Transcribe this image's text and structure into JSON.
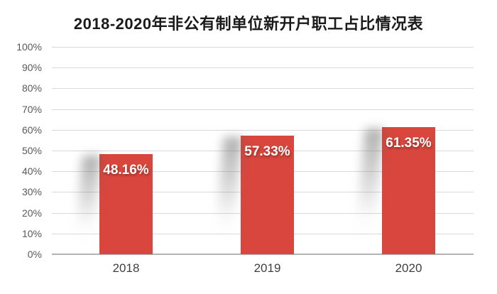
{
  "chart_data": {
    "type": "bar",
    "title": "2018-2020年非公有制单位新开户职工占比情况表",
    "categories": [
      "2018",
      "2019",
      "2020"
    ],
    "values": [
      48.16,
      57.33,
      61.35
    ],
    "data_labels": [
      "48.16%",
      "57.33%",
      "61.35%"
    ],
    "xlabel": "",
    "ylabel": "",
    "ylim": [
      0,
      100
    ],
    "y_tick_step": 10,
    "y_tick_labels": [
      "100%",
      "90%",
      "80%",
      "70%",
      "60%",
      "50%",
      "40%",
      "30%",
      "20%",
      "10%",
      "0%"
    ],
    "grid": "horizontal",
    "legend_position": "none",
    "colors": {
      "bar": "#d8463d",
      "bar_label_text": "#ffffff",
      "gridline": "#d9d9d9",
      "axis_line": "#b3b3b3",
      "tick_text": "#595959",
      "category_text": "#3f3f3f",
      "title_text": "#1a1a1a",
      "background": "#ffffff"
    }
  }
}
